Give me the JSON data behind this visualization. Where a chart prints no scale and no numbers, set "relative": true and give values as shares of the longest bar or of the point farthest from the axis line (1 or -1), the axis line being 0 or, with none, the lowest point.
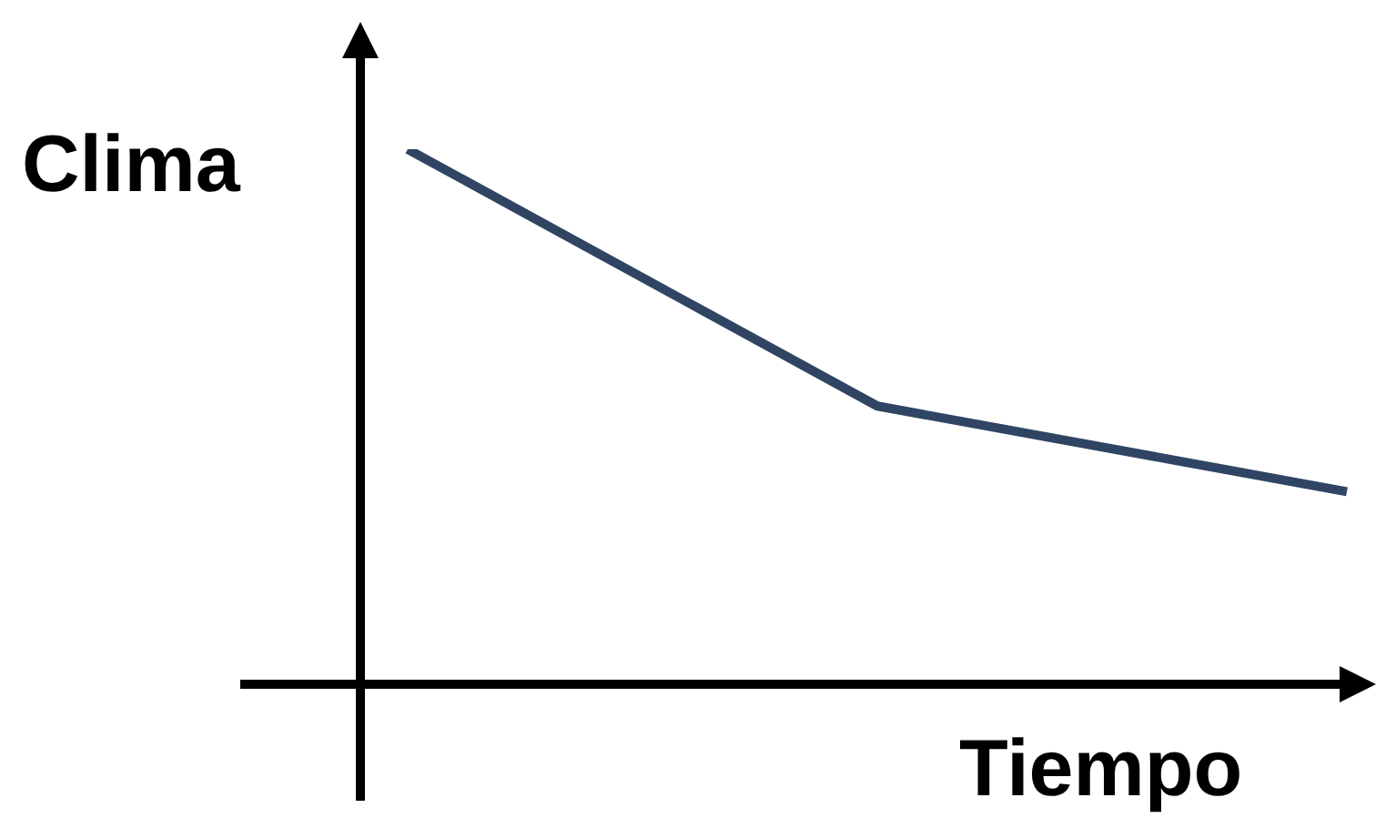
{
  "chart_data": {
    "type": "line",
    "relative": true,
    "xlabel": "Tiempo",
    "ylabel": "Clima",
    "categories": [
      null,
      null,
      null
    ],
    "marker": "none",
    "line_style": "solid",
    "series": [
      {
        "color": "#2f4563",
        "values": [
          1,
          0.52,
          0.36
        ]
      }
    ]
  }
}
